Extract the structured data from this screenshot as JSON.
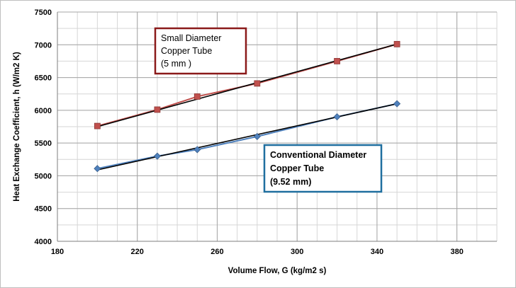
{
  "chart_data": {
    "type": "scatter",
    "title": "",
    "xlabel": "Volume Flow, G (kg/m2 s)",
    "ylabel": "Heat Exchange Coefficient, h (W/m2 K)",
    "xlim": [
      180,
      400
    ],
    "ylim": [
      4000,
      7500
    ],
    "x_ticks": [
      180,
      220,
      260,
      300,
      340,
      380
    ],
    "y_ticks": [
      4000,
      4500,
      5000,
      5500,
      6000,
      6500,
      7000,
      7500
    ],
    "x_minor_step": 10,
    "y_minor_step": 250,
    "grid": true,
    "series": [
      {
        "x": [
          200,
          230,
          250,
          280,
          320,
          350
        ],
        "y": [
          5760,
          6010,
          6210,
          6410,
          6750,
          7010
        ],
        "color": "#c0504d",
        "marker": "square",
        "trendline": {
          "color": "#000000",
          "x": [
            200,
            350
          ],
          "y": [
            5750,
            7010
          ]
        }
      },
      {
        "x": [
          200,
          230,
          250,
          280,
          320,
          350
        ],
        "y": [
          5110,
          5300,
          5400,
          5600,
          5900,
          6100
        ],
        "color": "#4f81bd",
        "marker": "diamond",
        "trendline": {
          "color": "#000000",
          "x": [
            200,
            350
          ],
          "y": [
            5090,
            6100
          ]
        }
      }
    ],
    "annotations": [
      {
        "lines": [
          "Small Diameter",
          "Copper Tube",
          "(5 mm )"
        ],
        "border_color": "#8b1a1a"
      },
      {
        "lines": [
          "Conventional Diameter",
          "Copper Tube",
          "(9.52 mm)"
        ],
        "border_color": "#1f6f9f"
      }
    ]
  }
}
